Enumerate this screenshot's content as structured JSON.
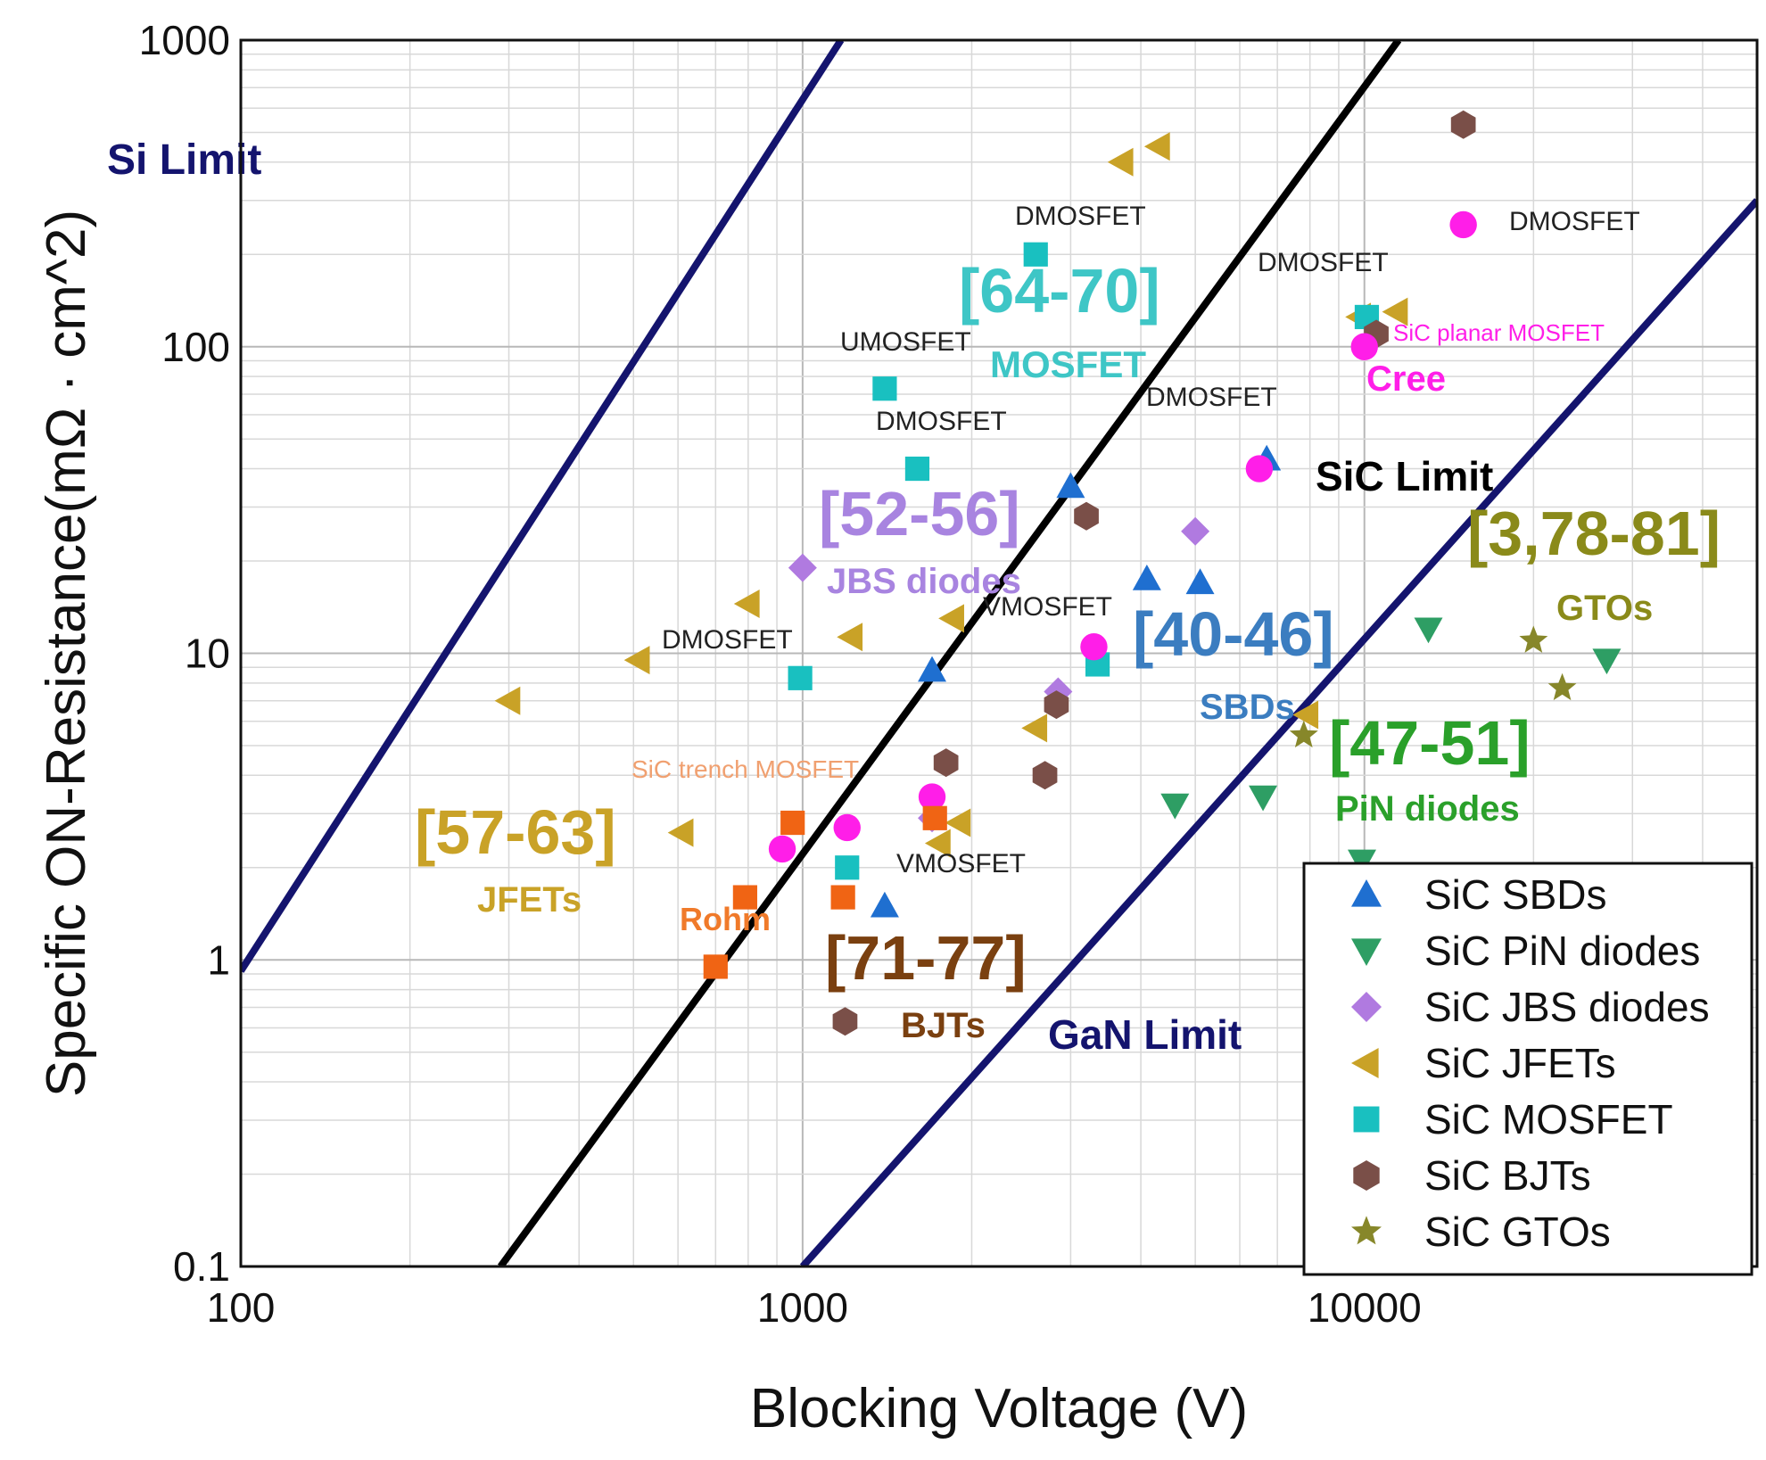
{
  "chart_data": {
    "type": "scatter",
    "title": "",
    "xlabel": "Blocking Voltage (V)",
    "ylabel": "Specific ON-Resistance(mΩ · cm^2)",
    "xscale": "log",
    "yscale": "log",
    "xlim": [
      100,
      50000
    ],
    "ylim": [
      0.1,
      1000
    ],
    "x_ticks": [
      {
        "v": 100,
        "label": "100"
      },
      {
        "v": 1000,
        "label": "1000"
      },
      {
        "v": 10000,
        "label": "10000"
      }
    ],
    "y_ticks": [
      {
        "v": 0.1,
        "label": "0.1"
      },
      {
        "v": 1,
        "label": "1"
      },
      {
        "v": 10,
        "label": "10"
      },
      {
        "v": 100,
        "label": "100"
      },
      {
        "v": 1000,
        "label": "1000"
      }
    ],
    "grid": true,
    "legend_position": "bottom-right",
    "limit_lines": [
      {
        "name": "Si Limit",
        "color": "#14146e",
        "points": [
          [
            100,
            0.92
          ],
          [
            1170,
            1000
          ]
        ]
      },
      {
        "name": "SiC Limit",
        "color": "#000000",
        "points": [
          [
            290,
            0.1
          ],
          [
            11500,
            1000
          ]
        ]
      },
      {
        "name": "GaN Limit",
        "color": "#14146e",
        "points": [
          [
            1000,
            0.1
          ],
          [
            50000,
            300
          ]
        ]
      }
    ],
    "series": [
      {
        "name": "SiC SBDs",
        "marker": "triangle-up",
        "color": "#1f6fd0",
        "points": [
          [
            3000,
            35
          ],
          [
            4100,
            17.5
          ],
          [
            5100,
            17
          ],
          [
            6700,
            43
          ],
          [
            1700,
            8.8
          ],
          [
            1400,
            1.5
          ]
        ]
      },
      {
        "name": "SiC PiN diodes",
        "marker": "triangle-down",
        "color": "#2e9e64",
        "points": [
          [
            13000,
            12
          ],
          [
            27000,
            9.5
          ],
          [
            4600,
            3.2
          ],
          [
            6600,
            3.4
          ],
          [
            9900,
            2.1
          ]
        ]
      },
      {
        "name": "SiC JBS diodes",
        "marker": "diamond",
        "color": "#b07ae0",
        "points": [
          [
            1000,
            19
          ],
          [
            5000,
            25
          ],
          [
            2850,
            7.5
          ],
          [
            1700,
            2.9
          ]
        ]
      },
      {
        "name": "SiC JFETs",
        "marker": "triangle-left",
        "color": "#c9a227",
        "points": [
          [
            300,
            7
          ],
          [
            510,
            9.5
          ],
          [
            800,
            14.5
          ],
          [
            1220,
            11.3
          ],
          [
            1850,
            13
          ],
          [
            610,
            2.6
          ],
          [
            1750,
            2.4
          ],
          [
            1900,
            2.8
          ],
          [
            2600,
            5.7
          ],
          [
            3700,
            400
          ],
          [
            4300,
            450
          ],
          [
            9800,
            125
          ],
          [
            11400,
            130
          ],
          [
            7900,
            6.3
          ]
        ]
      },
      {
        "name": "SiC MOSFET",
        "marker": "square",
        "color": "#19c0c0",
        "points": [
          [
            2600,
            200
          ],
          [
            1400,
            73
          ],
          [
            1600,
            40
          ],
          [
            990,
            8.3
          ],
          [
            3350,
            9.2
          ],
          [
            1200,
            2
          ],
          [
            10100,
            125
          ]
        ]
      },
      {
        "name": "SiC BJTs",
        "marker": "hexagon",
        "color": "#7a4f48",
        "points": [
          [
            15000,
            530
          ],
          [
            3200,
            28
          ],
          [
            2830,
            6.8
          ],
          [
            1800,
            4.4
          ],
          [
            2700,
            4
          ],
          [
            1190,
            0.63
          ],
          [
            10500,
            110
          ]
        ]
      },
      {
        "name": "SiC GTOs",
        "marker": "star",
        "color": "#87872a",
        "points": [
          [
            20000,
            11
          ],
          [
            22500,
            7.7
          ],
          [
            7800,
            5.4
          ]
        ]
      },
      {
        "name": "SiC planar MOSFET (Cree)",
        "marker": "circle",
        "color": "#ff1ee8",
        "in_legend": false,
        "points": [
          [
            15000,
            250
          ],
          [
            10000,
            100
          ],
          [
            6500,
            40
          ],
          [
            3300,
            10.5
          ],
          [
            1700,
            3.4
          ],
          [
            1200,
            2.7
          ],
          [
            920,
            2.3
          ]
        ]
      },
      {
        "name": "SiC trench MOSFET (Rohm)",
        "marker": "square",
        "color": "#f06414",
        "in_legend": false,
        "points": [
          [
            960,
            2.8
          ],
          [
            1720,
            2.9
          ],
          [
            1180,
            1.6
          ],
          [
            790,
            1.6
          ],
          [
            700,
            0.95
          ]
        ]
      }
    ],
    "annotations": [
      {
        "text": "Si Limit",
        "x": 120,
        "y": 195,
        "size": 48,
        "weight": "bold",
        "color": "#14146e"
      },
      {
        "text": "SiC Limit",
        "x": 1475,
        "y": 550,
        "size": 46,
        "weight": "bold",
        "color": "#000000"
      },
      {
        "text": "GaN Limit",
        "x": 1175,
        "y": 1176,
        "size": 46,
        "weight": "bold",
        "color": "#14146e"
      },
      {
        "text": "[64-70]",
        "x": 1075,
        "y": 350,
        "size": 70,
        "weight": "bold",
        "color": "#3ec6c6"
      },
      {
        "text": "MOSFET",
        "x": 1110,
        "y": 423,
        "size": 42,
        "weight": "bold",
        "color": "#3ec6c6"
      },
      {
        "text": "[52-56]",
        "x": 918,
        "y": 600,
        "size": 70,
        "weight": "bold",
        "color": "#a884e0"
      },
      {
        "text": "JBS diodes",
        "x": 927,
        "y": 665,
        "size": 40,
        "weight": "bold",
        "color": "#a884e0"
      },
      {
        "text": "[40-46]",
        "x": 1270,
        "y": 735,
        "size": 70,
        "weight": "bold",
        "color": "#3b7dc0"
      },
      {
        "text": "SBDs",
        "x": 1345,
        "y": 806,
        "size": 40,
        "weight": "bold",
        "color": "#3b7dc0"
      },
      {
        "text": "[3,78-81]",
        "x": 1645,
        "y": 622,
        "size": 70,
        "weight": "bold",
        "color": "#8a8a1a"
      },
      {
        "text": "GTOs",
        "x": 1745,
        "y": 695,
        "size": 40,
        "weight": "bold",
        "color": "#8a8a1a"
      },
      {
        "text": "[47-51]",
        "x": 1490,
        "y": 857,
        "size": 70,
        "weight": "bold",
        "color": "#2aa02a"
      },
      {
        "text": "PiN diodes",
        "x": 1497,
        "y": 920,
        "size": 40,
        "weight": "bold",
        "color": "#2aa02a"
      },
      {
        "text": "[57-63]",
        "x": 465,
        "y": 957,
        "size": 70,
        "weight": "bold",
        "color": "#c9a227"
      },
      {
        "text": "JFETs",
        "x": 535,
        "y": 1022,
        "size": 40,
        "weight": "bold",
        "color": "#c9a227"
      },
      {
        "text": "[71-77]",
        "x": 925,
        "y": 1098,
        "size": 70,
        "weight": "bold",
        "color": "#7a4010"
      },
      {
        "text": "BJTs",
        "x": 1010,
        "y": 1163,
        "size": 40,
        "weight": "bold",
        "color": "#7a4010"
      },
      {
        "text": "Cree",
        "x": 1532,
        "y": 438,
        "size": 40,
        "weight": "bold",
        "color": "#ff1ee8"
      },
      {
        "text": "SiC planar MOSFET",
        "x": 1562,
        "y": 382,
        "size": 26,
        "weight": "normal",
        "color": "#ff1ee8"
      },
      {
        "text": "Rohm",
        "x": 762,
        "y": 1043,
        "size": 36,
        "weight": "bold",
        "color": "#f07a2a"
      },
      {
        "text": "SiC trench MOSFET",
        "x": 708,
        "y": 872,
        "size": 28,
        "weight": "normal",
        "color": "#f0a070"
      },
      {
        "text": "DMOSFET",
        "x": 1138,
        "y": 252,
        "size": 30,
        "weight": "normal",
        "color": "#222222"
      },
      {
        "text": "DMOSFET",
        "x": 1692,
        "y": 258,
        "size": 30,
        "weight": "normal",
        "color": "#222222"
      },
      {
        "text": "DMOSFET",
        "x": 1410,
        "y": 304,
        "size": 30,
        "weight": "normal",
        "color": "#222222"
      },
      {
        "text": "UMOSFET",
        "x": 942,
        "y": 393,
        "size": 30,
        "weight": "normal",
        "color": "#222222"
      },
      {
        "text": "DMOSFET",
        "x": 1285,
        "y": 455,
        "size": 30,
        "weight": "normal",
        "color": "#222222"
      },
      {
        "text": "DMOSFET",
        "x": 982,
        "y": 482,
        "size": 30,
        "weight": "normal",
        "color": "#222222"
      },
      {
        "text": "VMOSFET",
        "x": 1102,
        "y": 690,
        "size": 30,
        "weight": "normal",
        "color": "#222222"
      },
      {
        "text": "DMOSFET",
        "x": 742,
        "y": 727,
        "size": 30,
        "weight": "normal",
        "color": "#222222"
      },
      {
        "text": "VMOSFET",
        "x": 1005,
        "y": 978,
        "size": 30,
        "weight": "normal",
        "color": "#222222"
      }
    ]
  }
}
